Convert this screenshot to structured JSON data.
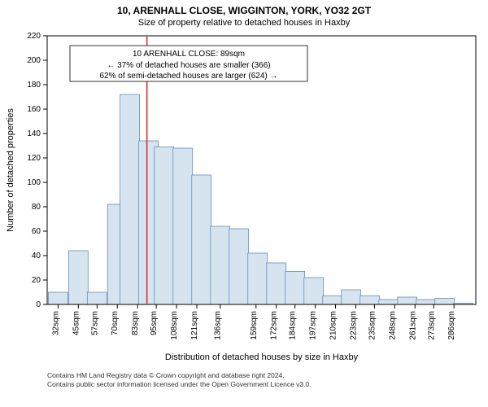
{
  "title": "10, ARENHALL CLOSE, WIGGINTON, YORK, YO32 2GT",
  "subtitle": "Size of property relative to detached houses in Haxby",
  "ylabel": "Number of detached properties",
  "xlabel": "Distribution of detached houses by size in Haxby",
  "annotation": {
    "line1": "10 ARENHALL CLOSE: 89sqm",
    "line2": "← 37% of detached houses are smaller (366)",
    "line3": "62% of semi-detached houses are larger (624) →"
  },
  "footer": {
    "line1": "Contains HM Land Registry data © Crown copyright and database right 2024.",
    "line2": "Contains public sector information licensed under the Open Government Licence v3.0."
  },
  "chart": {
    "type": "histogram",
    "bar_fill": "#d6e4f0",
    "bar_stroke": "#6a8db8",
    "axis_color": "#000000",
    "background": "#ffffff",
    "refline_color": "#d62728",
    "refline_x_value": 89,
    "ylim": [
      0,
      220
    ],
    "ytick_step": 20,
    "yticks": [
      0,
      20,
      40,
      60,
      80,
      100,
      120,
      140,
      160,
      180,
      200,
      220
    ],
    "xtick_labels": [
      "32sqm",
      "45sqm",
      "57sqm",
      "70sqm",
      "83sqm",
      "95sqm",
      "108sqm",
      "121sqm",
      "136sqm",
      "159sqm",
      "172sqm",
      "184sqm",
      "197sqm",
      "210sqm",
      "223sqm",
      "235sqm",
      "248sqm",
      "261sqm",
      "273sqm",
      "286sqm"
    ],
    "bars": [
      {
        "x": 32,
        "v": 10
      },
      {
        "x": 45,
        "v": 44
      },
      {
        "x": 57,
        "v": 10
      },
      {
        "x": 70,
        "v": 82
      },
      {
        "x": 78,
        "v": 172
      },
      {
        "x": 90,
        "v": 134
      },
      {
        "x": 100,
        "v": 129
      },
      {
        "x": 112,
        "v": 128
      },
      {
        "x": 124,
        "v": 106
      },
      {
        "x": 136,
        "v": 64
      },
      {
        "x": 148,
        "v": 62
      },
      {
        "x": 160,
        "v": 42
      },
      {
        "x": 172,
        "v": 34
      },
      {
        "x": 184,
        "v": 27
      },
      {
        "x": 196,
        "v": 22
      },
      {
        "x": 208,
        "v": 7
      },
      {
        "x": 220,
        "v": 12
      },
      {
        "x": 232,
        "v": 7
      },
      {
        "x": 244,
        "v": 4
      },
      {
        "x": 256,
        "v": 6
      },
      {
        "x": 268,
        "v": 4
      },
      {
        "x": 280,
        "v": 5
      },
      {
        "x": 292,
        "v": 1
      }
    ],
    "x_range": [
      25,
      300
    ],
    "title_fontsize": 12,
    "subtitle_fontsize": 11,
    "tick_fontsize": 10,
    "annotation_fontsize": 10
  }
}
